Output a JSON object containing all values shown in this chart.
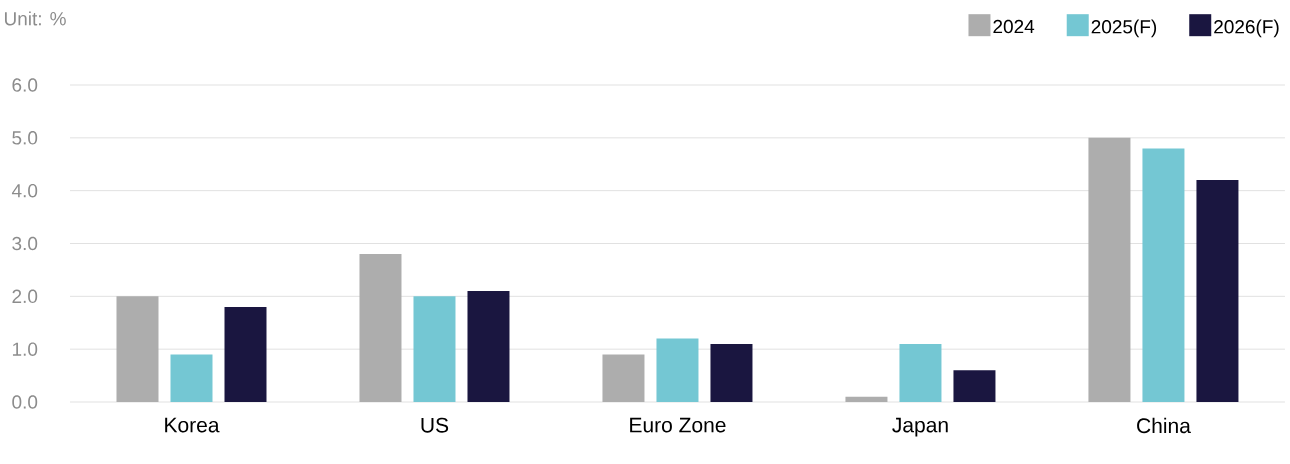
{
  "chart_data": {
    "type": "bar",
    "categories": [
      "Korea",
      "US",
      "Euro Zone",
      "Japan",
      "China"
    ],
    "series": [
      {
        "name": "2024",
        "color": "#adadad",
        "values": [
          2.0,
          2.8,
          0.9,
          0.1,
          5.0
        ]
      },
      {
        "name": "2025(F)",
        "color": "#74c7d3",
        "values": [
          0.9,
          2.0,
          1.2,
          1.1,
          4.8
        ]
      },
      {
        "name": "2026(F)",
        "color": "#1a1640",
        "values": [
          1.8,
          2.1,
          1.1,
          0.6,
          4.2
        ]
      }
    ],
    "ylim": [
      0,
      6
    ],
    "yticks": [
      {
        "value": 0,
        "label": "0.0"
      },
      {
        "value": 1,
        "label": "1.0"
      },
      {
        "value": 2,
        "label": "2.0"
      },
      {
        "value": 3,
        "label": "3.0"
      },
      {
        "value": 4,
        "label": "4.0"
      },
      {
        "value": 5,
        "label": "5.0"
      },
      {
        "value": 6,
        "label": "6.0"
      }
    ],
    "grid": "y",
    "legend": "top right",
    "annotations": [
      "Unit: %"
    ]
  }
}
